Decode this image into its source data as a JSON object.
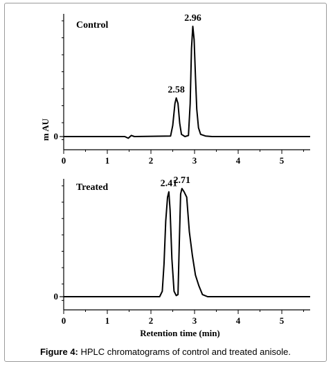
{
  "caption": {
    "bold": "Figure 4:",
    "text": " HPLC chromatograms of control and treated anisole."
  },
  "chart_data": [
    {
      "type": "line",
      "title": "Control",
      "xlabel": "",
      "ylabel": "m AU",
      "xlim": [
        0,
        5.65
      ],
      "x_ticks": [
        0,
        1,
        2,
        3,
        4,
        5
      ],
      "y_ticks": [
        0
      ],
      "grid": false,
      "peaks": [
        {
          "label": "2.58",
          "x": 2.58,
          "height": 0.35
        },
        {
          "label": "2.96",
          "x": 2.96,
          "height": 1.0
        }
      ],
      "series": [
        {
          "x": [
            0,
            1.4,
            1.48,
            1.55,
            1.62,
            2.45,
            2.5,
            2.55,
            2.58,
            2.62,
            2.66,
            2.7,
            2.78,
            2.86,
            2.9,
            2.93,
            2.96,
            2.99,
            3.02,
            3.05,
            3.09,
            3.14,
            3.25,
            3.4,
            5.65
          ],
          "y": [
            0,
            0,
            -0.015,
            0.01,
            0,
            0.005,
            0.1,
            0.3,
            0.35,
            0.3,
            0.12,
            0.02,
            0.0,
            0.01,
            0.3,
            0.8,
            1.0,
            0.88,
            0.55,
            0.25,
            0.08,
            0.02,
            0.005,
            0,
            0
          ]
        }
      ]
    },
    {
      "type": "line",
      "title": "Treated",
      "xlabel": "Retention time (min)",
      "ylabel": "",
      "xlim": [
        0,
        5.65
      ],
      "x_ticks": [
        0,
        1,
        2,
        3,
        4,
        5
      ],
      "y_ticks": [
        0
      ],
      "grid": false,
      "peaks": [
        {
          "label": "2.41",
          "x": 2.41,
          "height": 0.97
        },
        {
          "label": "2.71",
          "x": 2.71,
          "height": 1.0
        }
      ],
      "series": [
        {
          "x": [
            0,
            2.2,
            2.26,
            2.3,
            2.34,
            2.38,
            2.41,
            2.44,
            2.48,
            2.53,
            2.58,
            2.62,
            2.65,
            2.68,
            2.71,
            2.76,
            2.82,
            2.88,
            2.95,
            3.02,
            3.1,
            3.18,
            3.3,
            5.65
          ],
          "y": [
            0,
            0,
            0.05,
            0.3,
            0.7,
            0.92,
            0.97,
            0.8,
            0.35,
            0.05,
            0.01,
            0.02,
            0.5,
            0.95,
            1.0,
            0.97,
            0.92,
            0.6,
            0.38,
            0.2,
            0.1,
            0.02,
            0,
            0
          ]
        }
      ]
    }
  ]
}
